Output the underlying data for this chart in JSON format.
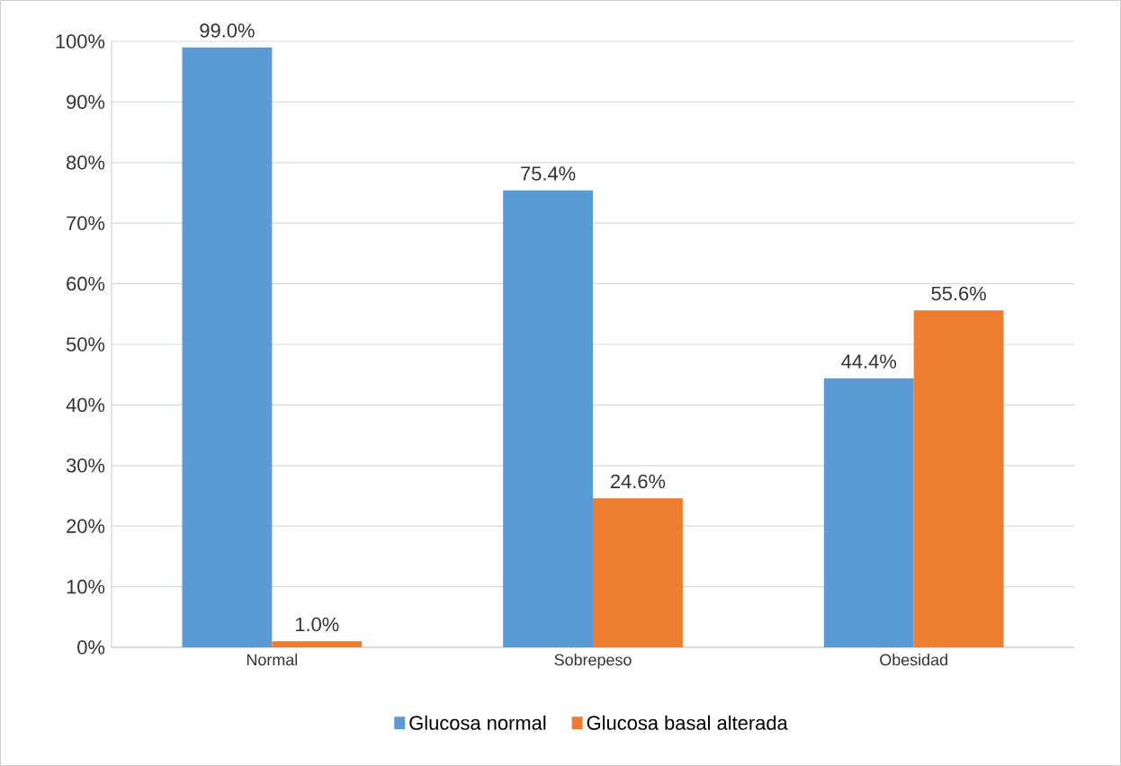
{
  "chart_data": {
    "type": "bar",
    "categories": [
      "Normal",
      "Sobrepeso",
      "Obesidad"
    ],
    "series": [
      {
        "name": "Glucosa normal",
        "color": "#5b9bd5",
        "values": [
          99.0,
          75.4,
          44.4
        ],
        "value_labels": [
          "99.0%",
          "75.4%",
          "44.4%"
        ]
      },
      {
        "name": "Glucosa basal alterada",
        "color": "#ed7d31",
        "values": [
          1.0,
          24.6,
          55.6
        ],
        "value_labels": [
          "1.0%",
          "24.6%",
          "55.6%"
        ]
      }
    ],
    "ylim": [
      0,
      100
    ],
    "yticks": [
      {
        "value": 0,
        "label": "0%"
      },
      {
        "value": 10,
        "label": "10%"
      },
      {
        "value": 20,
        "label": "20%"
      },
      {
        "value": 30,
        "label": "30%"
      },
      {
        "value": 40,
        "label": "40%"
      },
      {
        "value": 50,
        "label": "50%"
      },
      {
        "value": 60,
        "label": "60%"
      },
      {
        "value": 70,
        "label": "70%"
      },
      {
        "value": 80,
        "label": "80%"
      },
      {
        "value": 90,
        "label": "90%"
      },
      {
        "value": 100,
        "label": "100%"
      }
    ],
    "grid": "y",
    "legend": "bottom"
  }
}
